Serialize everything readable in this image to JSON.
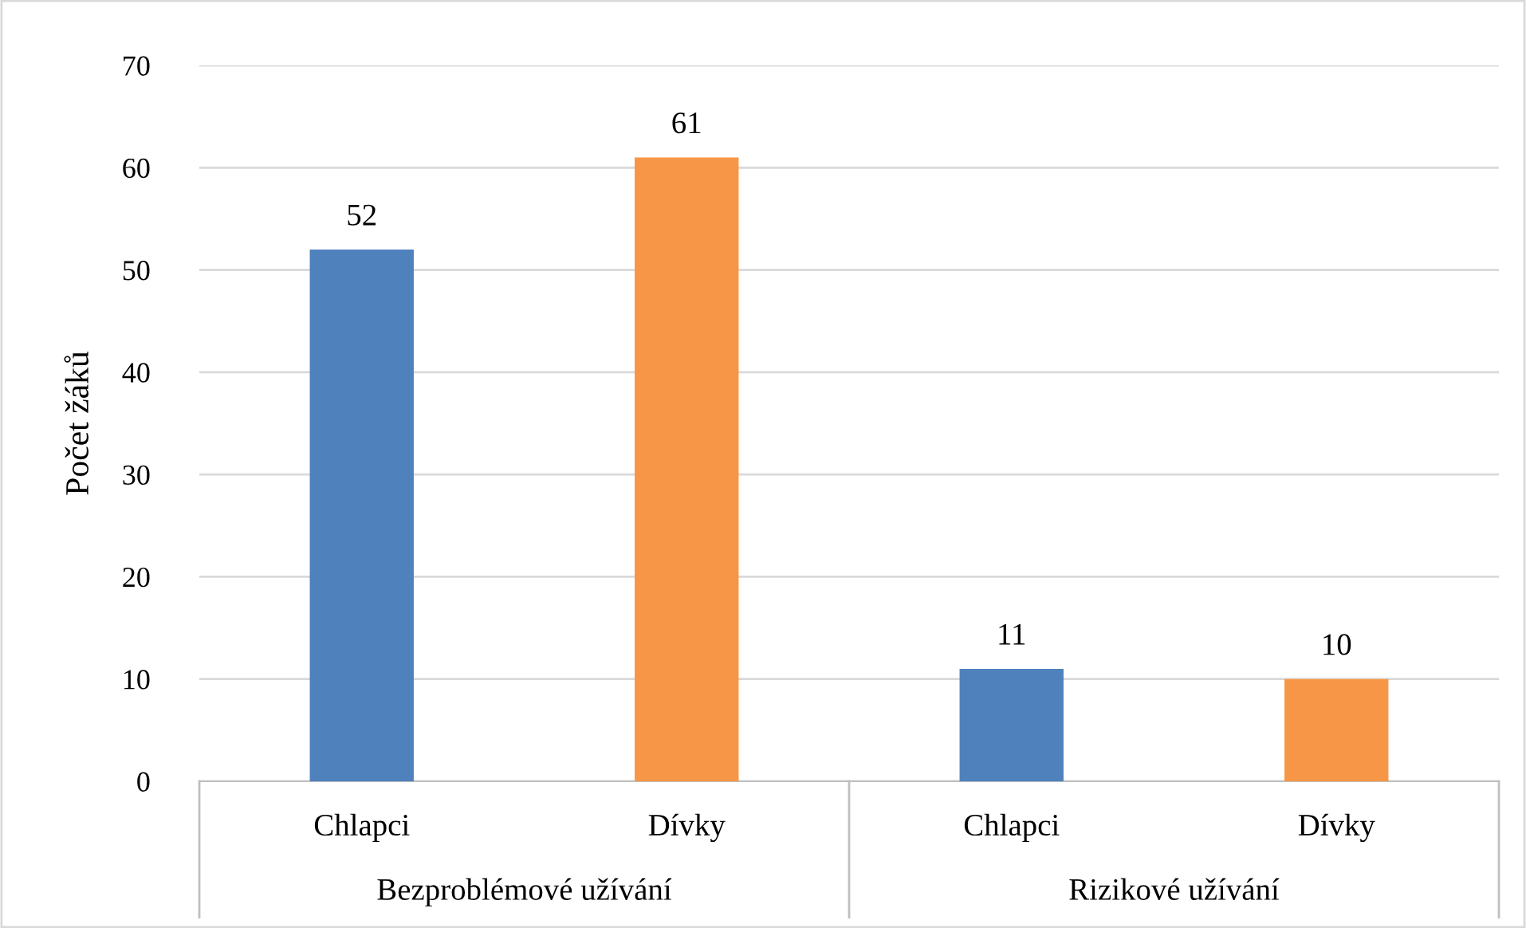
{
  "chart_data": {
    "type": "bar",
    "categories": [
      "Chlapci",
      "Dívky",
      "Chlapci",
      "Dívky"
    ],
    "values": [
      52,
      61,
      11,
      10
    ],
    "colors": [
      "#4f81bd",
      "#f79646",
      "#4f81bd",
      "#f79646"
    ],
    "ylabel": "Počet žáků",
    "ylim": [
      0,
      70
    ],
    "yticks": [
      0,
      10,
      20,
      30,
      40,
      50,
      60,
      70
    ],
    "grid": "y",
    "data_labels": true,
    "annotations": [
      "Bezproblémové užívání",
      "Rizikové užívání"
    ]
  }
}
